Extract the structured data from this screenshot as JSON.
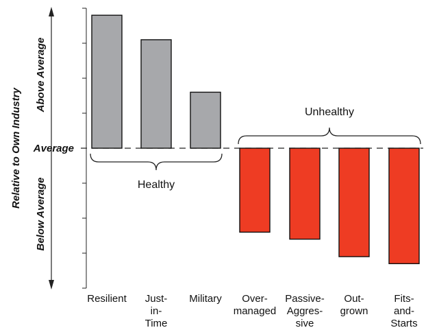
{
  "chart_data": {
    "type": "bar",
    "ylabel": "Relative to Own Industry",
    "baseline_label": "Average",
    "upper_label": "Above Average",
    "lower_label": "Below Average",
    "ylim": [
      -4,
      4
    ],
    "grid": false,
    "categories": [
      [
        "Resilient"
      ],
      [
        "Just-",
        "in-",
        "Time"
      ],
      [
        "Military"
      ],
      [
        "Over-",
        "managed"
      ],
      [
        "Passive-",
        "Aggres-",
        "sive"
      ],
      [
        "Out-",
        "grown"
      ],
      [
        "Fits-",
        "and-",
        "Starts"
      ]
    ],
    "values": [
      3.8,
      3.1,
      1.6,
      -2.4,
      -2.6,
      -3.1,
      -3.3
    ],
    "groups": [
      {
        "label": "Healthy",
        "start": 0,
        "end": 2,
        "color": "#a7a8ab",
        "brace": "below"
      },
      {
        "label": "Unhealthy",
        "start": 3,
        "end": 6,
        "color": "#ee3c23",
        "brace": "above"
      }
    ]
  }
}
